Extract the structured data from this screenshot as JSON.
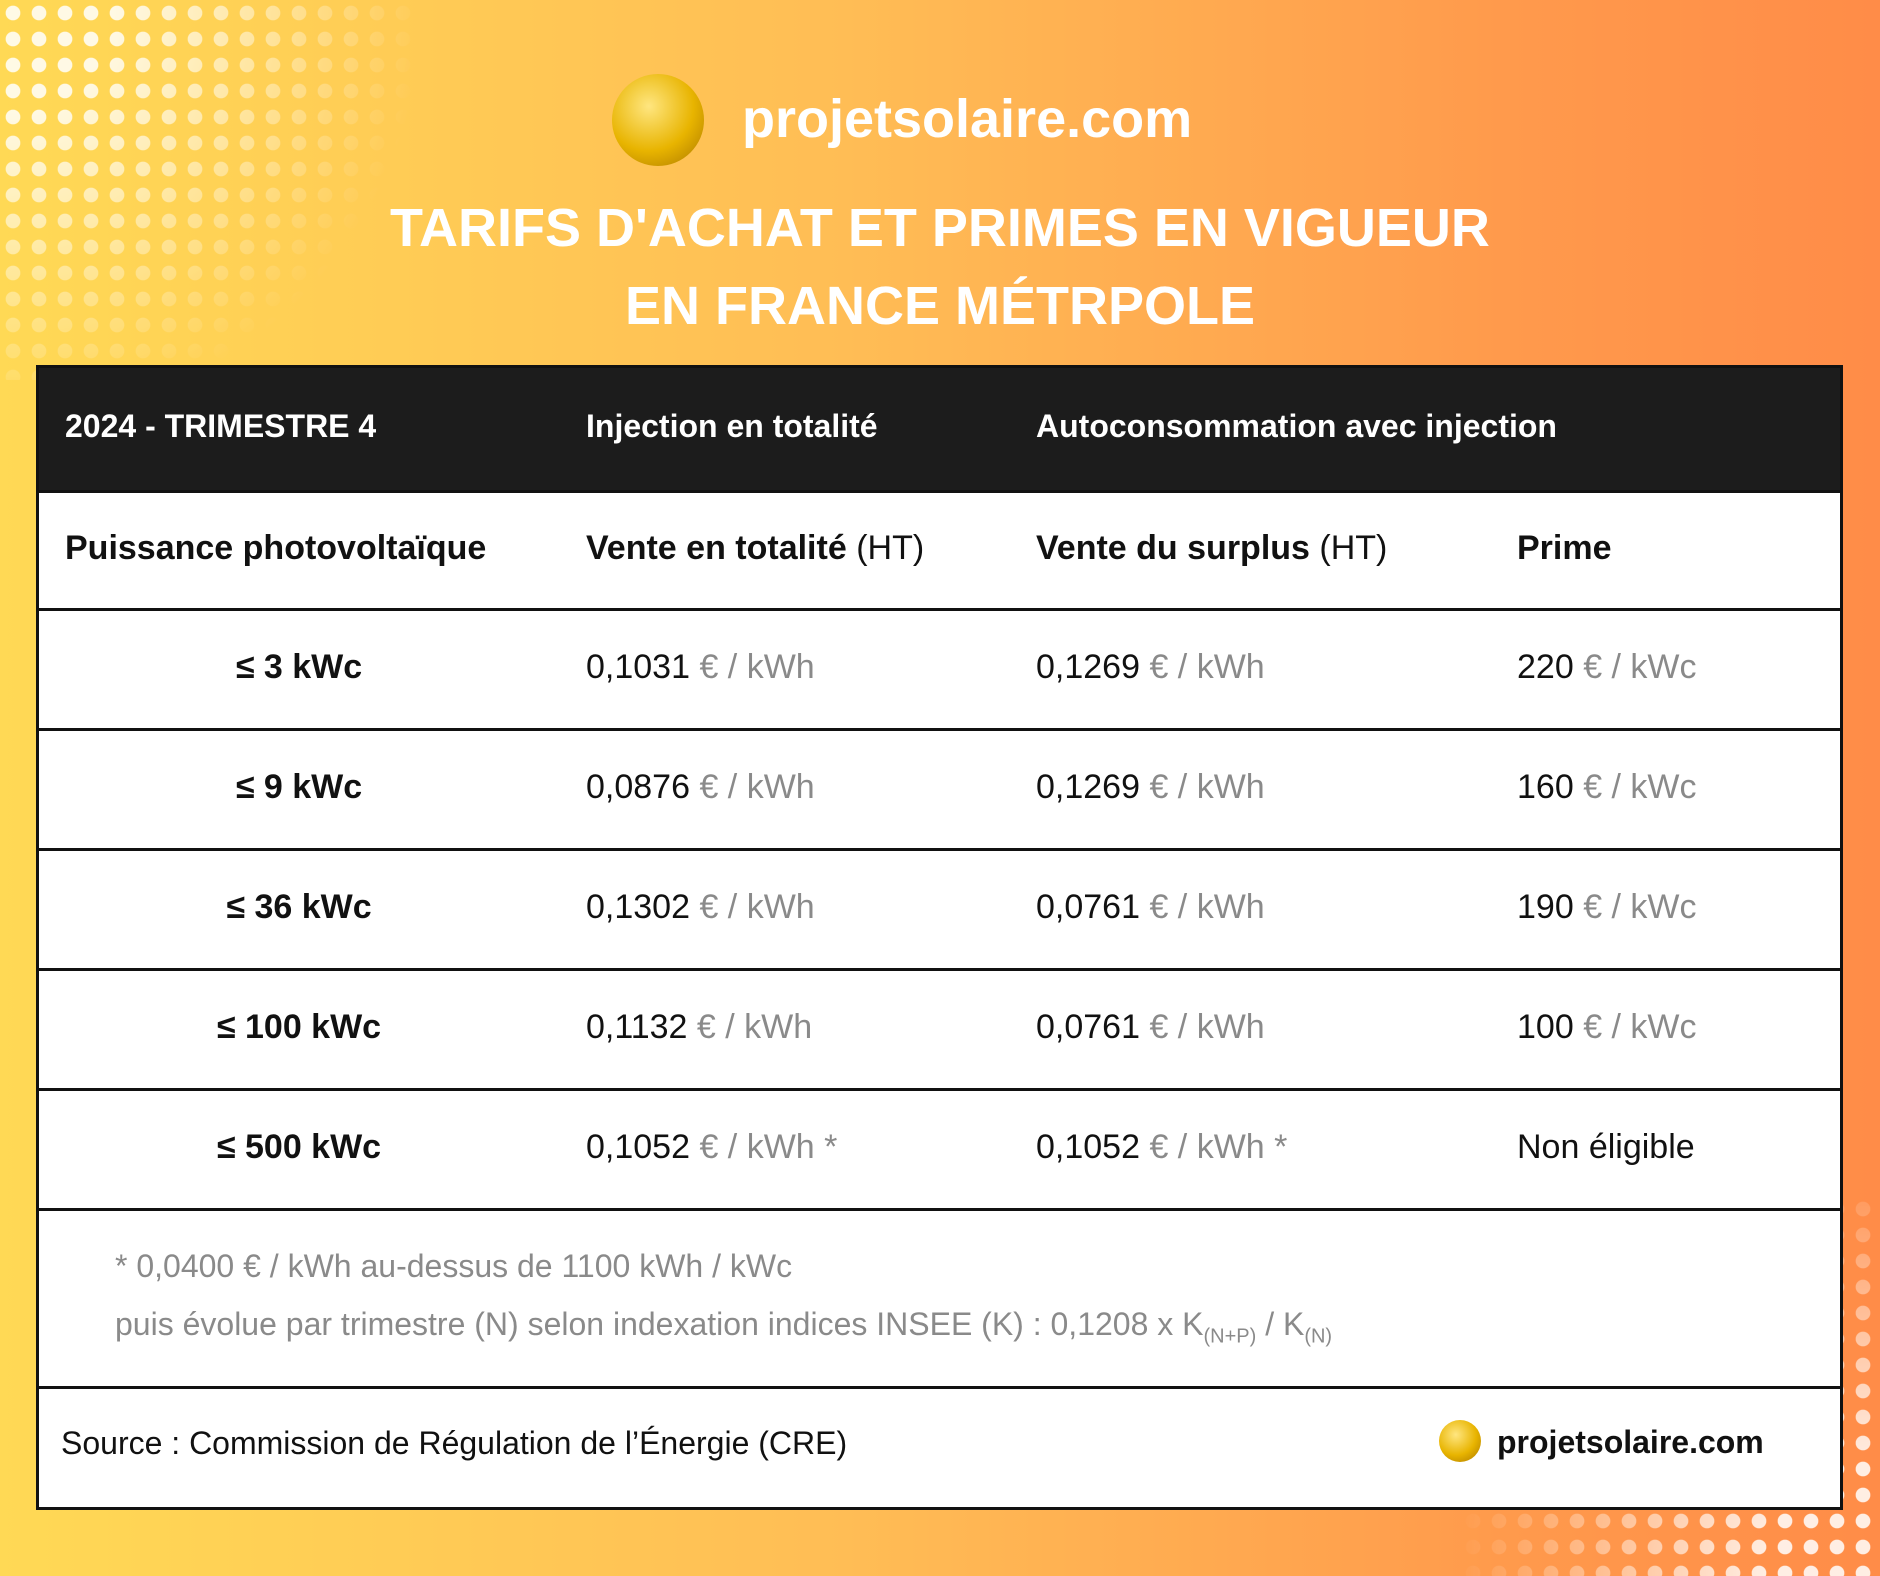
{
  "header": {
    "brand": "projetsolaire.com",
    "title_lines": [
      "TARIFS D'ACHAT ET PRIMES EN VIGUEUR",
      "EN FRANCE MÉTRPOLE"
    ]
  },
  "table": {
    "top_header": [
      "2024 - TRIMESTRE 4",
      "Injection en totalité",
      "Autoconsommation avec injection"
    ],
    "sub_header": [
      {
        "text": "Puissance photovoltaïque"
      },
      {
        "text": "Vente en totalité",
        "suffix": "(HT)"
      },
      {
        "text": "Vente du surplus",
        "suffix": "(HT)"
      },
      {
        "text": "Prime"
      }
    ],
    "rows": [
      [
        "≤ 3 kWc",
        [
          "0,1031",
          "€ / kWh"
        ],
        [
          "0,1269",
          "€ / kWh"
        ],
        [
          "220",
          "€ / kWc"
        ]
      ],
      [
        "≤ 9 kWc",
        [
          "0,0876",
          "€ / kWh"
        ],
        [
          "0,1269",
          "€ / kWh"
        ],
        [
          "160",
          "€ / kWc"
        ]
      ],
      [
        "≤ 36 kWc",
        [
          "0,1302",
          "€ / kWh"
        ],
        [
          "0,0761",
          "€ / kWh"
        ],
        [
          "190",
          "€ / kWc"
        ]
      ],
      [
        "≤ 100 kWc",
        [
          "0,1132",
          "€ / kWh"
        ],
        [
          "0,0761",
          "€ / kWh"
        ],
        [
          "100",
          "€ / kWc"
        ]
      ],
      [
        "≤ 500 kWc",
        [
          "0,1052",
          "€ / kWh *"
        ],
        [
          "0,1052",
          "€ / kWh *"
        ],
        "Non éligible"
      ]
    ],
    "footnote": {
      "line1": "* 0,0400 € / kWh au-dessus de 1100 kWh / kWc",
      "line2": [
        "puis évolue par trimestre (N) selon indexation indices INSEE (K) : 0,1208 x K",
        "(N+P)",
        " / K",
        "(N)"
      ]
    }
  },
  "footer": {
    "source": "Source : Commission de Régulation de l’Énergie (CRE)",
    "brand": "projetsolaire.com"
  }
}
